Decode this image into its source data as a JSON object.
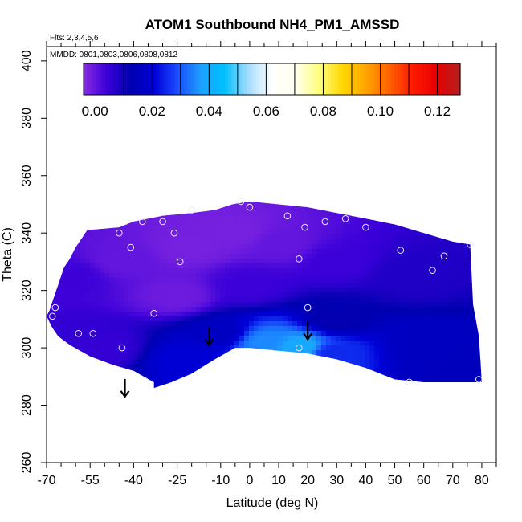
{
  "chart_data": {
    "type": "heatmap",
    "title": "ATOM1 Southbound NH4_PM1_AMSSD",
    "annotations": {
      "flights": "Flts: 2,3,4,5,6",
      "dates": "MMDD: 0801,0803,0806,0808,0812"
    },
    "xlabel": "Latitude (deg N)",
    "ylabel": "Theta (C)",
    "xlim": [
      -70,
      85
    ],
    "ylim": [
      260,
      405
    ],
    "x_tick_labels": [
      "-70",
      "-55",
      "-40",
      "-25",
      "-10",
      "0",
      "10",
      "20",
      "30",
      "40",
      "50",
      "60",
      "70",
      "80"
    ],
    "x_ticks": [
      -70,
      -55,
      -40,
      -25,
      -10,
      0,
      10,
      20,
      30,
      40,
      50,
      60,
      70,
      80
    ],
    "x_minor_ticks": [
      -65,
      -60,
      -50,
      -45,
      -35,
      -30,
      -20,
      -15,
      -5,
      5,
      15,
      25,
      35,
      45,
      55,
      65,
      75,
      85
    ],
    "y_ticks": [
      260,
      280,
      300,
      320,
      340,
      360,
      380,
      400
    ],
    "y_tick_labels": [
      "260",
      "280",
      "300",
      "320",
      "340",
      "360",
      "380",
      "400"
    ],
    "colorbar": {
      "range": [
        -0.004,
        0.128
      ],
      "tick_values": [
        0.0,
        0.02,
        0.04,
        0.06,
        0.08,
        0.1,
        0.12
      ],
      "tick_labels": [
        "0.00",
        "0.02",
        "0.04",
        "0.06",
        "0.08",
        "0.10",
        "0.12"
      ],
      "colors": [
        "#8a2be2",
        "#3a00d8",
        "#0000b0",
        "#0000d8",
        "#1a4cff",
        "#1ea0ff",
        "#00c0ff",
        "#a6dcff",
        "#ffffff",
        "#fffff0",
        "#ffff80",
        "#ffd700",
        "#ffa500",
        "#ff6000",
        "#ff1a00",
        "#e60000",
        "#b22222"
      ]
    },
    "domain_outline": [
      [
        -70,
        311
      ],
      [
        -69,
        313
      ],
      [
        -68,
        316
      ],
      [
        -67,
        319
      ],
      [
        -66,
        322
      ],
      [
        -65,
        325
      ],
      [
        -64,
        328
      ],
      [
        -62,
        331
      ],
      [
        -60,
        335
      ],
      [
        -58,
        338
      ],
      [
        -56,
        341
      ],
      [
        -45,
        342
      ],
      [
        -40,
        344
      ],
      [
        -30,
        346
      ],
      [
        -20,
        347
      ],
      [
        -12,
        348
      ],
      [
        -6,
        350
      ],
      [
        0,
        351
      ],
      [
        10,
        350
      ],
      [
        20,
        349
      ],
      [
        30,
        347
      ],
      [
        40,
        345
      ],
      [
        50,
        343
      ],
      [
        60,
        340
      ],
      [
        70,
        337
      ],
      [
        76,
        336
      ],
      [
        77,
        315
      ],
      [
        79,
        304
      ],
      [
        80,
        288
      ],
      [
        72,
        288
      ],
      [
        60,
        288
      ],
      [
        50,
        289
      ],
      [
        40,
        293
      ],
      [
        30,
        296
      ],
      [
        20,
        298
      ],
      [
        10,
        299
      ],
      [
        0,
        300
      ],
      [
        -5,
        300
      ],
      [
        -12,
        296
      ],
      [
        -20,
        291
      ],
      [
        -27,
        288
      ],
      [
        -33,
        286
      ],
      [
        -33,
        288
      ],
      [
        -40,
        292
      ],
      [
        -47,
        294
      ],
      [
        -55,
        297
      ],
      [
        -62,
        301
      ],
      [
        -66,
        304
      ],
      [
        -68,
        307
      ]
    ],
    "field": [
      {
        "lat": -60,
        "theta": 325,
        "value": 0.004
      },
      {
        "lat": -45,
        "theta": 330,
        "value": 0.0
      },
      {
        "lat": -20,
        "theta": 335,
        "value": -0.002
      },
      {
        "lat": -5,
        "theta": 340,
        "value": -0.002
      },
      {
        "lat": 10,
        "theta": 336,
        "value": 0.0
      },
      {
        "lat": 30,
        "theta": 330,
        "value": 0.004
      },
      {
        "lat": 55,
        "theta": 325,
        "value": 0.008
      },
      {
        "lat": -25,
        "theta": 318,
        "value": -0.001
      },
      {
        "lat": 0,
        "theta": 322,
        "value": 0.004
      },
      {
        "lat": 30,
        "theta": 310,
        "value": 0.012
      },
      {
        "lat": 60,
        "theta": 300,
        "value": 0.016
      },
      {
        "lat": 70,
        "theta": 292,
        "value": 0.015
      },
      {
        "lat": -10,
        "theta": 305,
        "value": 0.016
      },
      {
        "lat": 5,
        "theta": 302,
        "value": 0.035
      },
      {
        "lat": 18,
        "theta": 300,
        "value": 0.04
      },
      {
        "lat": 28,
        "theta": 298,
        "value": 0.025
      },
      {
        "lat": -22,
        "theta": 296,
        "value": 0.02
      },
      {
        "lat": -50,
        "theta": 300,
        "value": 0.005
      }
    ],
    "observations": [
      {
        "lat": -68,
        "theta": 311
      },
      {
        "lat": -67,
        "theta": 314
      },
      {
        "lat": -59,
        "theta": 305
      },
      {
        "lat": -54,
        "theta": 305
      },
      {
        "lat": -44,
        "theta": 300
      },
      {
        "lat": -45,
        "theta": 340
      },
      {
        "lat": -41,
        "theta": 335
      },
      {
        "lat": -37,
        "theta": 344
      },
      {
        "lat": -30,
        "theta": 344
      },
      {
        "lat": -26,
        "theta": 340
      },
      {
        "lat": -24,
        "theta": 330
      },
      {
        "lat": -20,
        "theta": 348
      },
      {
        "lat": -33,
        "theta": 312
      },
      {
        "lat": -3,
        "theta": 351
      },
      {
        "lat": 0,
        "theta": 349
      },
      {
        "lat": 13,
        "theta": 346
      },
      {
        "lat": 17,
        "theta": 331
      },
      {
        "lat": 19,
        "theta": 342
      },
      {
        "lat": 20,
        "theta": 314
      },
      {
        "lat": 17,
        "theta": 300
      },
      {
        "lat": 26,
        "theta": 344
      },
      {
        "lat": 33,
        "theta": 345
      },
      {
        "lat": 40,
        "theta": 342
      },
      {
        "lat": 52,
        "theta": 334
      },
      {
        "lat": 63,
        "theta": 327
      },
      {
        "lat": 67,
        "theta": 332
      },
      {
        "lat": 76,
        "theta": 336
      },
      {
        "lat": 55,
        "theta": 288
      },
      {
        "lat": 79,
        "theta": 289
      }
    ],
    "arrows": [
      {
        "lat": -43,
        "theta": 283
      },
      {
        "lat": -14,
        "theta": 301
      },
      {
        "lat": 20,
        "theta": 303
      }
    ]
  }
}
